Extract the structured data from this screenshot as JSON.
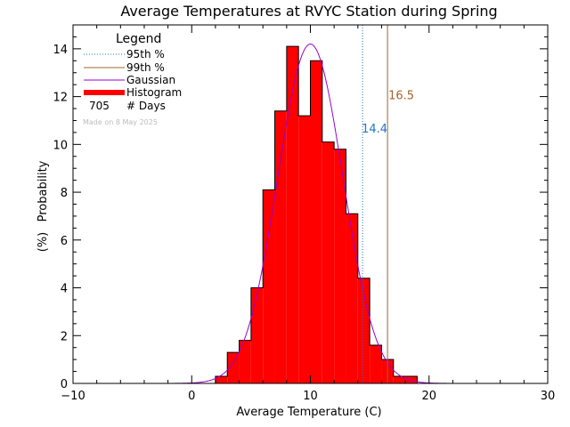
{
  "chart_data": {
    "type": "bar",
    "title": "Average Temperatures at RVYC Station during Spring",
    "xlabel": "Average Temperature (C)",
    "ylabel_top": "Probability",
    "ylabel_bottom": "(%)",
    "xlim": [
      -10,
      30
    ],
    "ylim": [
      0,
      15
    ],
    "xticks": [
      -10,
      0,
      10,
      20,
      30
    ],
    "xtick_labels": [
      "−10",
      "0",
      "10",
      "20",
      "30"
    ],
    "yticks": [
      0,
      2,
      4,
      6,
      8,
      10,
      12,
      14
    ],
    "grid": false,
    "legend_position": "top-left",
    "histogram": {
      "name": "Histogram",
      "color": "#ff0000",
      "bin_edges": [
        2,
        3,
        4,
        5,
        6,
        7,
        8,
        9,
        10,
        11,
        12,
        13,
        14,
        15,
        16,
        17,
        18,
        19
      ],
      "values": [
        0.3,
        1.3,
        1.8,
        4.0,
        8.1,
        11.4,
        14.1,
        11.2,
        13.5,
        10.1,
        9.8,
        7.1,
        4.4,
        1.6,
        1.0,
        0.3,
        0.3
      ]
    },
    "gaussian": {
      "name": "Gaussian",
      "color": "#9900cc",
      "mean": 10.0,
      "peak": 14.2,
      "sigma": 2.75
    },
    "percentile_95": {
      "name": "95th %",
      "value": 14.4,
      "label": "14.4",
      "color": "#1f77c8"
    },
    "percentile_99": {
      "name": "99th %",
      "value": 16.5,
      "label": "16.5",
      "color": "#a0642a"
    },
    "legend": {
      "title": "Legend",
      "days_count": "705",
      "days_label": "# Days",
      "note": "Made on 8 May 2025"
    }
  }
}
